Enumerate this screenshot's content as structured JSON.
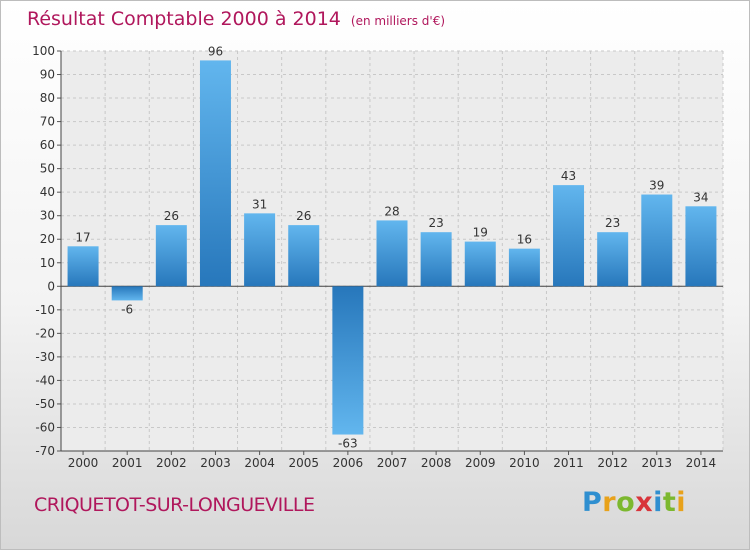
{
  "header": {
    "title": "Résultat Comptable 2000 à 2014",
    "unit": "(en milliers d'€)"
  },
  "footer": {
    "city": "CRIQUETOT-SUR-LONGUEVILLE",
    "logo": "Proxiti"
  },
  "colors": {
    "title": "#b0175c",
    "bar_light": "#5fb4ec",
    "bar_dark": "#2a7cc0"
  },
  "chart_data": {
    "type": "bar",
    "title": "Résultat Comptable 2000 à 2014",
    "subtitle": "(en milliers d'€)",
    "xlabel": "",
    "ylabel": "",
    "ylim": [
      -70,
      100
    ],
    "yticks": [
      100,
      90,
      80,
      70,
      60,
      50,
      40,
      30,
      20,
      10,
      0,
      -10,
      -20,
      -30,
      -40,
      -50,
      -60,
      -70
    ],
    "grid": true,
    "categories": [
      "2000",
      "2001",
      "2002",
      "2003",
      "2004",
      "2005",
      "2006",
      "2007",
      "2008",
      "2009",
      "2010",
      "2011",
      "2012",
      "2013",
      "2014"
    ],
    "values": [
      17,
      -6,
      26,
      96,
      31,
      26,
      -63,
      28,
      23,
      19,
      16,
      43,
      23,
      39,
      34
    ]
  }
}
